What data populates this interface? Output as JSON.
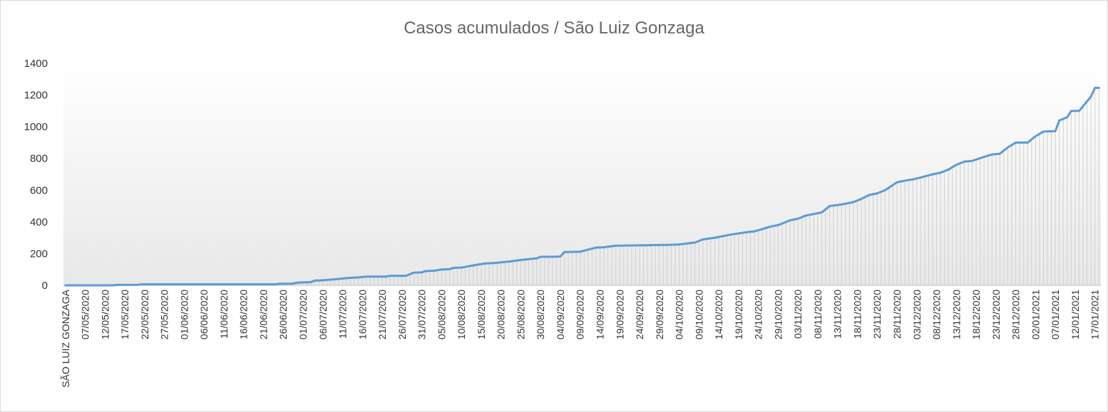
{
  "chart_data": {
    "type": "area",
    "title": "Casos acumulados / São Luiz Gonzaga",
    "xlabel": "",
    "ylabel": "",
    "ylim": [
      0,
      1400
    ],
    "yticks": [
      0,
      200,
      400,
      600,
      800,
      1000,
      1200,
      1400
    ],
    "grid": false,
    "legend": "none",
    "first_category": "SÃO LUIZ GONZAGA",
    "x_start": "2020-05-02",
    "x_end": "2021-01-18",
    "x_tick_labels": [
      "SÃO LUIZ GONZAGA",
      "07/05/2020",
      "12/05/2020",
      "17/05/2020",
      "22/05/2020",
      "27/05/2020",
      "01/06/2020",
      "06/06/2020",
      "11/06/2020",
      "16/06/2020",
      "21/06/2020",
      "26/06/2020",
      "01/07/2020",
      "06/07/2020",
      "11/07/2020",
      "16/07/2020",
      "21/07/2020",
      "26/07/2020",
      "31/07/2020",
      "05/08/2020",
      "10/08/2020",
      "15/08/2020",
      "20/08/2020",
      "25/08/2020",
      "30/08/2020",
      "04/09/2020",
      "09/09/2020",
      "14/09/2020",
      "19/09/2020",
      "24/09/2020",
      "29/09/2020",
      "04/10/2020",
      "09/10/2020",
      "14/10/2020",
      "19/10/2020",
      "24/10/2020",
      "29/10/2020",
      "03/11/2020",
      "08/11/2020",
      "13/11/2020",
      "18/11/2020",
      "23/11/2020",
      "28/11/2020",
      "03/12/2020",
      "08/12/2020",
      "13/12/2020",
      "18/12/2020",
      "23/12/2020",
      "28/12/2020",
      "02/01/2021",
      "07/01/2021",
      "12/01/2021",
      "17/01/2021"
    ],
    "series": [
      {
        "color": "#5b9bd5",
        "fill_color": "#d0d0d0",
        "points": [
          [
            "2020-05-02",
            0
          ],
          [
            "2020-05-14",
            0
          ],
          [
            "2020-05-15",
            3
          ],
          [
            "2020-05-20",
            3
          ],
          [
            "2020-05-21",
            6
          ],
          [
            "2020-06-24",
            6
          ],
          [
            "2020-06-25",
            10
          ],
          [
            "2020-06-28",
            10
          ],
          [
            "2020-06-30",
            18
          ],
          [
            "2020-07-03",
            20
          ],
          [
            "2020-07-04",
            30
          ],
          [
            "2020-07-06",
            32
          ],
          [
            "2020-07-10",
            40
          ],
          [
            "2020-07-12",
            46
          ],
          [
            "2020-07-15",
            50
          ],
          [
            "2020-07-17",
            55
          ],
          [
            "2020-07-22",
            55
          ],
          [
            "2020-07-23",
            60
          ],
          [
            "2020-07-27",
            60
          ],
          [
            "2020-07-29",
            80
          ],
          [
            "2020-07-31",
            82
          ],
          [
            "2020-08-01",
            90
          ],
          [
            "2020-08-03",
            92
          ],
          [
            "2020-08-05",
            100
          ],
          [
            "2020-08-07",
            102
          ],
          [
            "2020-08-08",
            110
          ],
          [
            "2020-08-10",
            112
          ],
          [
            "2020-08-14",
            130
          ],
          [
            "2020-08-16",
            138
          ],
          [
            "2020-08-18",
            140
          ],
          [
            "2020-08-22",
            150
          ],
          [
            "2020-08-25",
            160
          ],
          [
            "2020-08-29",
            170
          ],
          [
            "2020-08-30",
            180
          ],
          [
            "2020-09-02",
            180
          ],
          [
            "2020-09-04",
            182
          ],
          [
            "2020-09-05",
            210
          ],
          [
            "2020-09-09",
            212
          ],
          [
            "2020-09-11",
            225
          ],
          [
            "2020-09-13",
            238
          ],
          [
            "2020-09-15",
            240
          ],
          [
            "2020-09-18",
            250
          ],
          [
            "2020-10-01",
            255
          ],
          [
            "2020-10-04",
            258
          ],
          [
            "2020-10-08",
            270
          ],
          [
            "2020-10-10",
            290
          ],
          [
            "2020-10-13",
            300
          ],
          [
            "2020-10-17",
            320
          ],
          [
            "2020-10-21",
            335
          ],
          [
            "2020-10-23",
            340
          ],
          [
            "2020-10-27",
            370
          ],
          [
            "2020-10-29",
            380
          ],
          [
            "2020-11-01",
            410
          ],
          [
            "2020-11-03",
            420
          ],
          [
            "2020-11-05",
            440
          ],
          [
            "2020-11-07",
            450
          ],
          [
            "2020-11-09",
            460
          ],
          [
            "2020-11-11",
            500
          ],
          [
            "2020-11-14",
            510
          ],
          [
            "2020-11-17",
            525
          ],
          [
            "2020-11-19",
            545
          ],
          [
            "2020-11-21",
            570
          ],
          [
            "2020-11-23",
            580
          ],
          [
            "2020-11-25",
            600
          ],
          [
            "2020-11-28",
            650
          ],
          [
            "2020-11-30",
            660
          ],
          [
            "2020-12-02",
            668
          ],
          [
            "2020-12-04",
            680
          ],
          [
            "2020-12-07",
            700
          ],
          [
            "2020-12-09",
            710
          ],
          [
            "2020-12-11",
            730
          ],
          [
            "2020-12-13",
            760
          ],
          [
            "2020-12-15",
            780
          ],
          [
            "2020-12-17",
            785
          ],
          [
            "2020-12-20",
            810
          ],
          [
            "2020-12-22",
            825
          ],
          [
            "2020-12-24",
            830
          ],
          [
            "2020-12-26",
            870
          ],
          [
            "2020-12-28",
            900
          ],
          [
            "2020-12-31",
            900
          ],
          [
            "2021-01-02",
            940
          ],
          [
            "2021-01-04",
            970
          ],
          [
            "2021-01-07",
            972
          ],
          [
            "2021-01-08",
            1040
          ],
          [
            "2021-01-10",
            1060
          ],
          [
            "2021-01-11",
            1100
          ],
          [
            "2021-01-13",
            1100
          ],
          [
            "2021-01-16",
            1190
          ],
          [
            "2021-01-17",
            1245
          ],
          [
            "2021-01-18",
            1245
          ],
          [
            "2021-01-19",
            1300
          ]
        ]
      }
    ]
  }
}
